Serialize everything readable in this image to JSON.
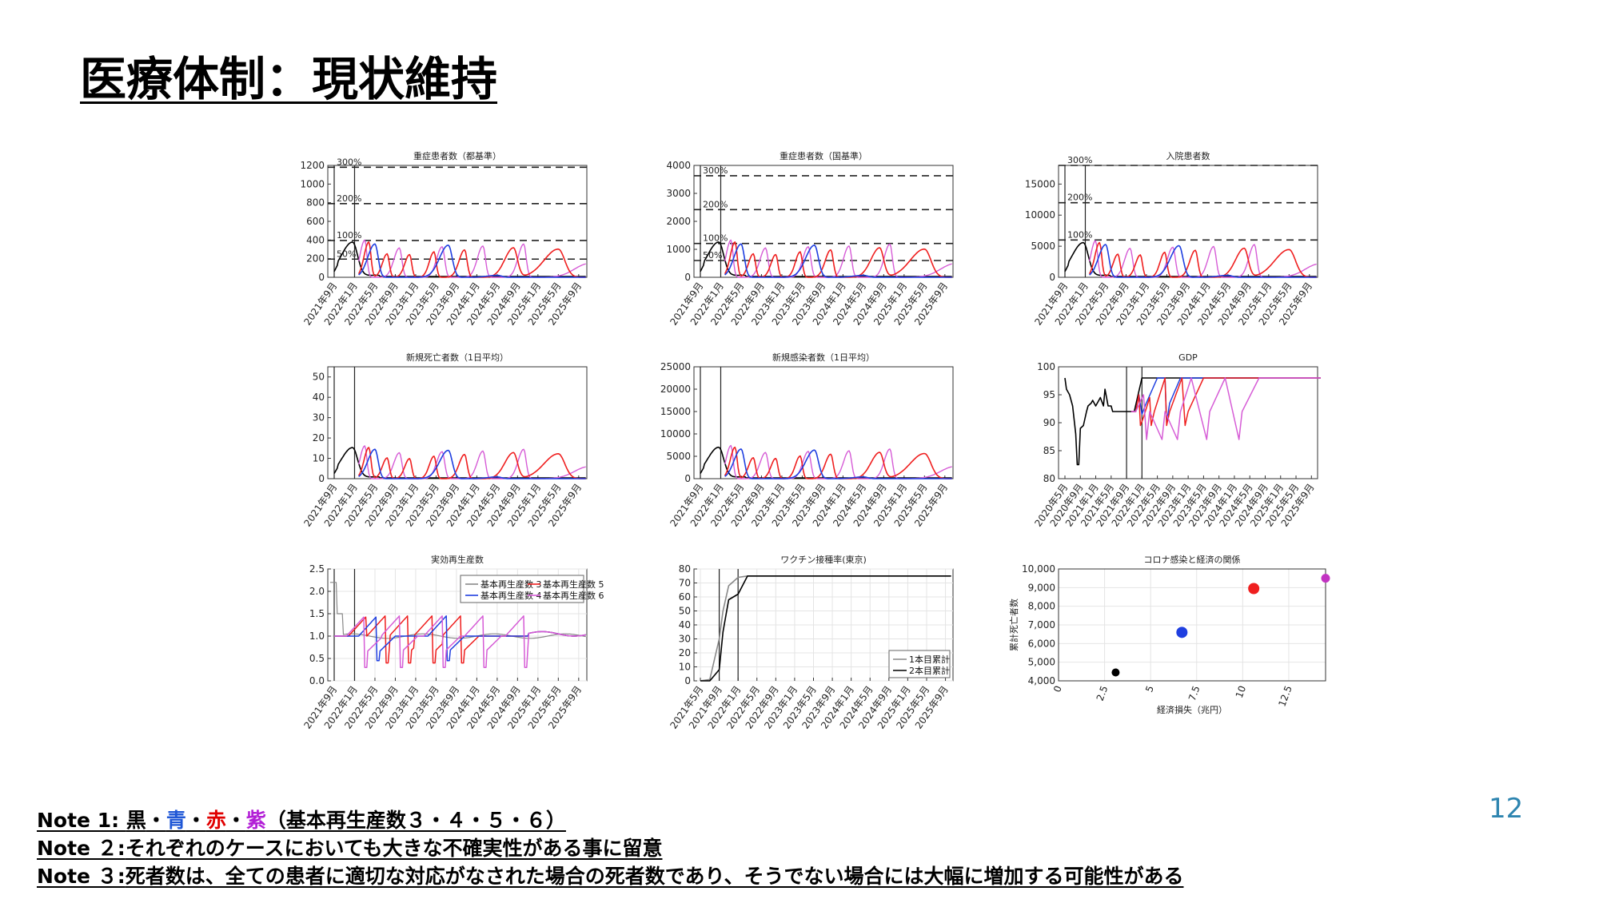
{
  "slide": {
    "title": "医療体制：現状維持",
    "page_number": "12",
    "notes": [
      {
        "prefix": "Note 1: ",
        "parts": [
          {
            "text": "黒",
            "color": "#000000"
          },
          {
            "text": "・",
            "color": "#000000"
          },
          {
            "text": "青",
            "color": "#1f57d6"
          },
          {
            "text": "・",
            "color": "#000000"
          },
          {
            "text": "赤",
            "color": "#e00000"
          },
          {
            "text": "・",
            "color": "#000000"
          },
          {
            "text": "紫",
            "color": "#b21fd6"
          },
          {
            "text": "（基本再生産数３・４・５・６）",
            "color": "#000000"
          }
        ]
      },
      {
        "prefix": "Note ２:",
        "parts": [
          {
            "text": "それぞれのケースにおいても大きな不確実性がある事に留意",
            "color": "#000000"
          }
        ]
      },
      {
        "prefix": "Note ３:",
        "parts": [
          {
            "text": "死者数は、全ての患者に適切な対応がなされた場合の死者数であり、そうでない場合には大幅に増加する可能性がある",
            "color": "#000000"
          }
        ]
      }
    ]
  },
  "colors": {
    "black": "#000000",
    "blue": "#1f3fe0",
    "red": "#ef1f1f",
    "purple": "#d65cd6",
    "gray": "#888888"
  },
  "chart_data": [
    {
      "id": "severe-metro",
      "type": "line",
      "title": "重症患者数（都基準）",
      "xlabel": "",
      "ylabel": "",
      "ylim": [
        0,
        1200
      ],
      "yticks": [
        0,
        200,
        400,
        600,
        800,
        1000,
        1200
      ],
      "x_categories": [
        "2021年9月",
        "2022年1月",
        "2022年5月",
        "2022年9月",
        "2023年1月",
        "2023年5月",
        "2023年9月",
        "2024年1月",
        "2024年5月",
        "2024年9月",
        "2025年1月",
        "2025年5月",
        "2025年9月"
      ],
      "thresholds": [
        {
          "label": "50%",
          "y": 195
        },
        {
          "label": "100%",
          "y": 395
        },
        {
          "label": "200%",
          "y": 790
        },
        {
          "label": "300%",
          "y": 1180
        }
      ],
      "vlines_x": [
        "2021年9月",
        "2022年1月"
      ],
      "grid": false
    },
    {
      "id": "severe-national",
      "type": "line",
      "title": "重症患者数（国基準）",
      "xlabel": "",
      "ylabel": "",
      "ylim": [
        0,
        4000
      ],
      "yticks": [
        0,
        1000,
        2000,
        3000,
        4000
      ],
      "x_categories": [
        "2021年9月",
        "2022年1月",
        "2022年5月",
        "2022年9月",
        "2023年1月",
        "2023年5月",
        "2023年9月",
        "2024年1月",
        "2024年5月",
        "2024年9月",
        "2025年1月",
        "2025年5月",
        "2025年9月"
      ],
      "thresholds": [
        {
          "label": "50%",
          "y": 600
        },
        {
          "label": "100%",
          "y": 1210
        },
        {
          "label": "200%",
          "y": 2420
        },
        {
          "label": "300%",
          "y": 3630
        }
      ],
      "vlines_x": [
        "2021年9月",
        "2022年1月"
      ],
      "grid": false
    },
    {
      "id": "hospitalized",
      "type": "line",
      "title": "入院患者数",
      "xlabel": "",
      "ylabel": "",
      "ylim": [
        0,
        18000
      ],
      "yticks": [
        0,
        5000,
        10000,
        15000
      ],
      "x_categories": [
        "2021年9月",
        "2022年1月",
        "2022年5月",
        "2022年9月",
        "2023年1月",
        "2023年5月",
        "2023年9月",
        "2024年1月",
        "2024年5月",
        "2024年9月",
        "2025年1月",
        "2025年5月",
        "2025年9月"
      ],
      "thresholds": [
        {
          "label": "100%",
          "y": 6000
        },
        {
          "label": "200%",
          "y": 12000
        },
        {
          "label": "300%",
          "y": 18000
        }
      ],
      "vlines_x": [
        "2021年9月",
        "2022年1月"
      ],
      "grid": false
    },
    {
      "id": "deaths",
      "type": "line",
      "title": "新規死亡者数（1日平均）",
      "xlabel": "",
      "ylabel": "",
      "ylim": [
        0,
        55
      ],
      "yticks": [
        0,
        10,
        20,
        30,
        40,
        50
      ],
      "x_categories": [
        "2021年9月",
        "2022年1月",
        "2022年5月",
        "2022年9月",
        "2023年1月",
        "2023年5月",
        "2023年9月",
        "2024年1月",
        "2024年5月",
        "2024年9月",
        "2025年1月",
        "2025年5月",
        "2025年9月"
      ],
      "vlines_x": [
        "2021年9月",
        "2022年1月"
      ],
      "grid": false
    },
    {
      "id": "infections",
      "type": "line",
      "title": "新規感染者数（1日平均）",
      "xlabel": "",
      "ylabel": "",
      "ylim": [
        0,
        25000
      ],
      "yticks": [
        0,
        5000,
        10000,
        15000,
        20000,
        25000
      ],
      "x_categories": [
        "2021年9月",
        "2022年1月",
        "2022年5月",
        "2022年9月",
        "2023年1月",
        "2023年5月",
        "2023年9月",
        "2024年1月",
        "2024年5月",
        "2024年9月",
        "2025年1月",
        "2025年5月",
        "2025年9月"
      ],
      "vlines_x": [
        "2021年9月",
        "2022年1月"
      ],
      "grid": false
    },
    {
      "id": "gdp",
      "type": "line",
      "title": "GDP",
      "xlabel": "",
      "ylabel": "",
      "ylim": [
        80,
        100
      ],
      "yticks": [
        80,
        85,
        90,
        95,
        100
      ],
      "x_categories": [
        "2020年5月",
        "2020年9月",
        "2021年1月",
        "2021年5月",
        "2021年9月",
        "2022年1月",
        "2022年5月",
        "2022年9月",
        "2023年1月",
        "2023年5月",
        "2023年9月",
        "2024年1月",
        "2024年5月",
        "2024年9月",
        "2025年1月",
        "2025年5月",
        "2025年9月"
      ],
      "vlines_x": [
        "2021年9月",
        "2022年1月"
      ],
      "grid": false
    },
    {
      "id": "rt",
      "type": "line",
      "title": "実効再生産数",
      "xlabel": "",
      "ylabel": "",
      "ylim": [
        0,
        2.5
      ],
      "yticks": [
        "0.0",
        "0.5",
        "1.0",
        "1.5",
        "2.0",
        "2.5"
      ],
      "x_categories": [
        "2021年9月",
        "2022年1月",
        "2022年5月",
        "2022年9月",
        "2023年1月",
        "2023年5月",
        "2023年9月",
        "2024年1月",
        "2024年5月",
        "2024年9月",
        "2025年1月",
        "2025年5月",
        "2025年9月"
      ],
      "vlines_x": [
        "2021年9月",
        "2022年1月"
      ],
      "legend": [
        "基本再生産数 3",
        "基本再生産数 4",
        "基本再生産数 5",
        "基本再生産数 6"
      ],
      "legend_position": "top-right",
      "grid": true
    },
    {
      "id": "vaccine",
      "type": "line",
      "title": "ワクチン接種率(東京)",
      "xlabel": "",
      "ylabel": "",
      "ylim": [
        0,
        80
      ],
      "yticks": [
        0,
        10,
        20,
        30,
        40,
        50,
        60,
        70,
        80
      ],
      "x_categories": [
        "2021年5月",
        "2021年9月",
        "2022年1月",
        "2022年5月",
        "2022年9月",
        "2023年1月",
        "2023年5月",
        "2023年9月",
        "2024年1月",
        "2024年5月",
        "2024年9月",
        "2025年1月",
        "2025年5月",
        "2025年9月"
      ],
      "vlines_x": [
        "2021年9月",
        "2022年1月"
      ],
      "legend": [
        "1本目累計",
        "2本目累計"
      ],
      "legend_position": "bottom-right",
      "grid": true,
      "series": [
        {
          "name": "1本目累計",
          "x": [
            0,
            0.5,
            1,
            1.2,
            1.5,
            2,
            2.5,
            13.3
          ],
          "values": [
            0,
            1,
            30,
            50,
            68,
            74,
            75,
            75
          ]
        },
        {
          "name": "2本目累計",
          "x": [
            0,
            0.5,
            1,
            1.2,
            1.5,
            2,
            2.5,
            13.3
          ],
          "values": [
            0,
            0,
            8,
            35,
            58,
            62,
            75,
            75
          ]
        }
      ]
    },
    {
      "id": "covid-economy",
      "type": "scatter",
      "title": "コロナ感染と経済の関係",
      "xlabel": "経済損失（兆円）",
      "ylabel": "累計死亡者数",
      "xlim": [
        0,
        14.5
      ],
      "ylim": [
        4000,
        10000
      ],
      "xticks": [
        "0",
        "2.5",
        "5",
        "7.5",
        "10",
        "12.5"
      ],
      "yticks": [
        "4,000",
        "5,000",
        "6,000",
        "7,000",
        "8,000",
        "9,000",
        "10,000"
      ],
      "grid": true,
      "points": [
        {
          "x": 3.1,
          "y": 4450,
          "color": "#000000"
        },
        {
          "x": 6.7,
          "y": 6600,
          "color": "#1f3fe0"
        },
        {
          "x": 10.6,
          "y": 8950,
          "color": "#ef1f1f"
        },
        {
          "x": 14.5,
          "y": 9500,
          "color": "#c233c2"
        }
      ]
    }
  ]
}
